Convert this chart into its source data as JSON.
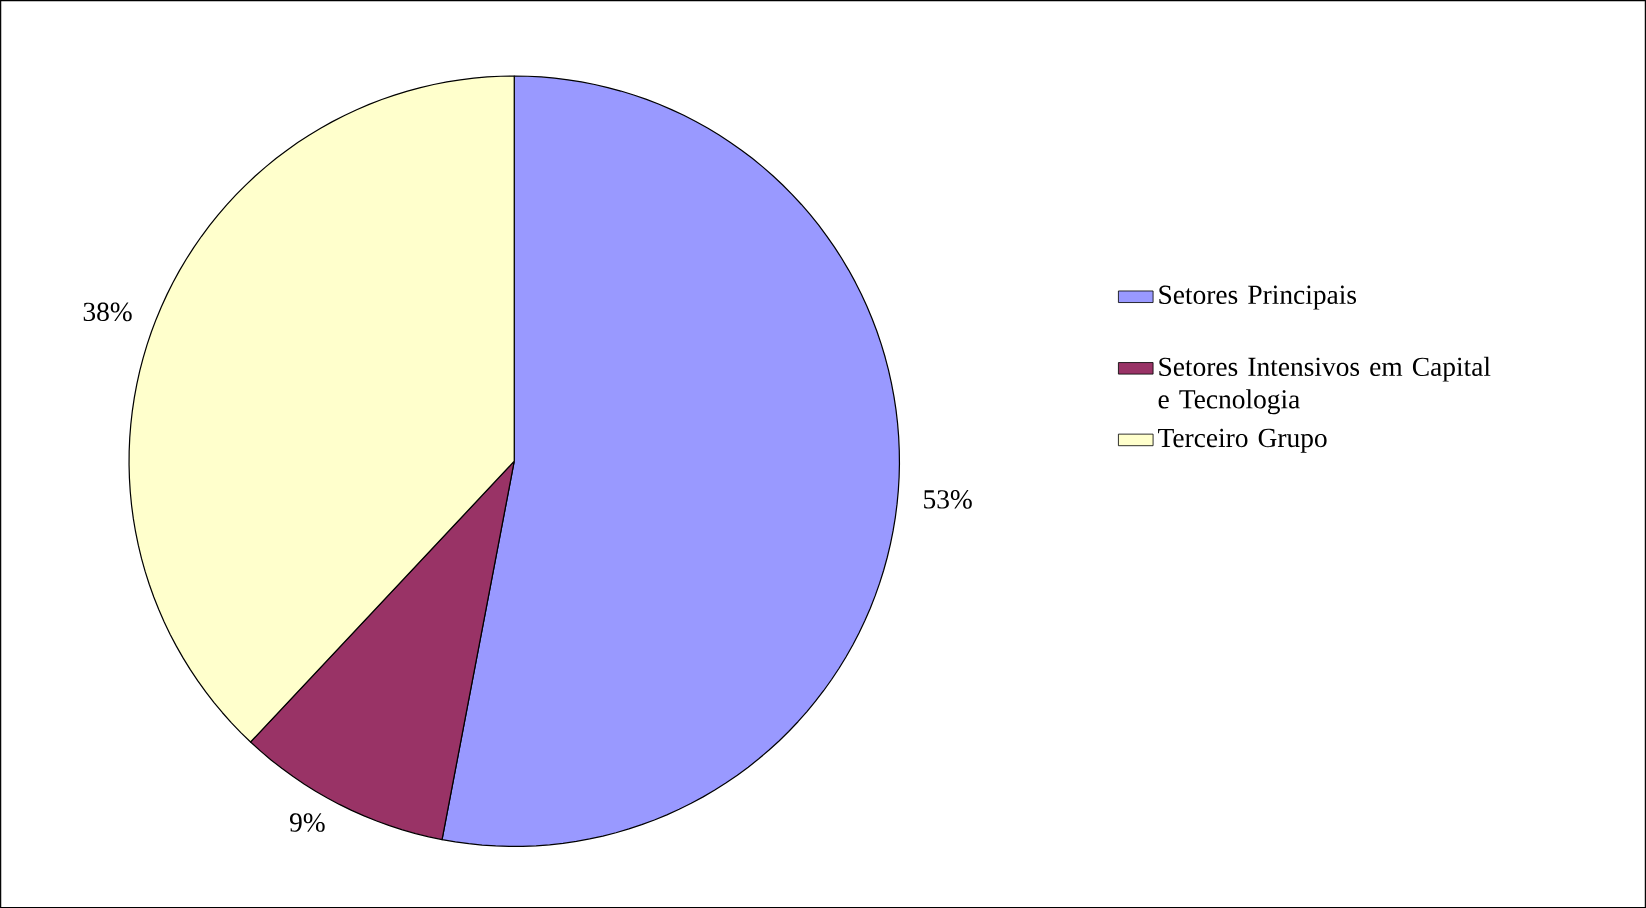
{
  "chart_data": {
    "type": "pie",
    "categories": [
      "Setores Principais",
      "Setores Intensivos em Capital e Tecnologia",
      "Terceiro Grupo"
    ],
    "values": [
      53,
      9,
      38
    ],
    "value_labels": [
      "53%",
      "9%",
      "38%"
    ],
    "colors": [
      "#9999ff",
      "#993366",
      "#ffffcc"
    ],
    "legend": "right"
  }
}
